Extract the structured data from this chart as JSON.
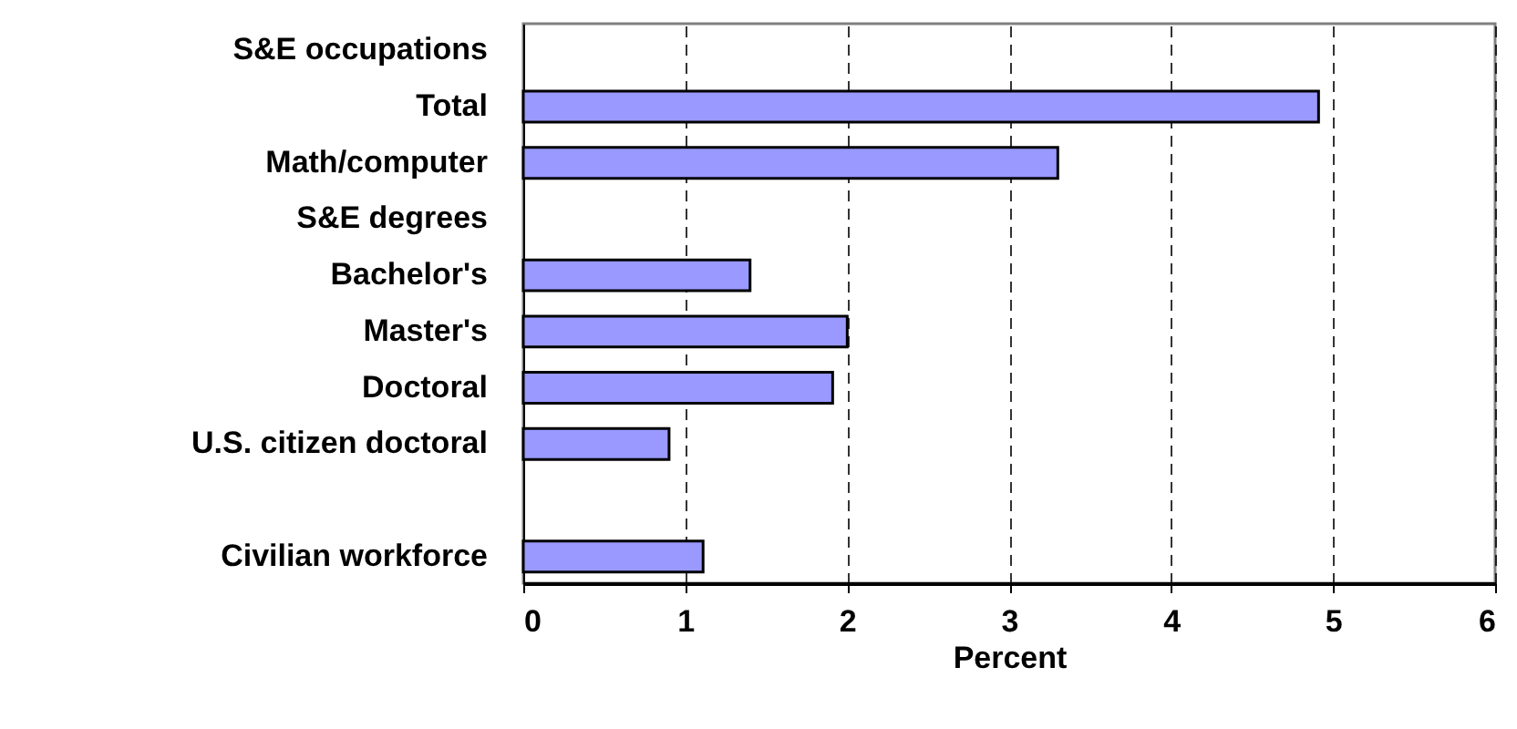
{
  "chart_data": {
    "type": "bar",
    "orientation": "horizontal",
    "xlabel": "Percent",
    "categories": [
      "S&E occupations",
      "Total",
      "Math/computer",
      "S&E degrees",
      "Bachelor's",
      "Master's",
      "Doctoral",
      "U.S. citizen doctoral",
      null,
      "Civilian workforce"
    ],
    "values": [
      null,
      4.91,
      3.3,
      null,
      1.4,
      2.0,
      1.91,
      0.9,
      null,
      1.11
    ],
    "color": "#9999ff",
    "xlim": [
      0,
      6
    ],
    "xticks": [
      0,
      1,
      2,
      3,
      4,
      5,
      6
    ],
    "grid": "x"
  }
}
